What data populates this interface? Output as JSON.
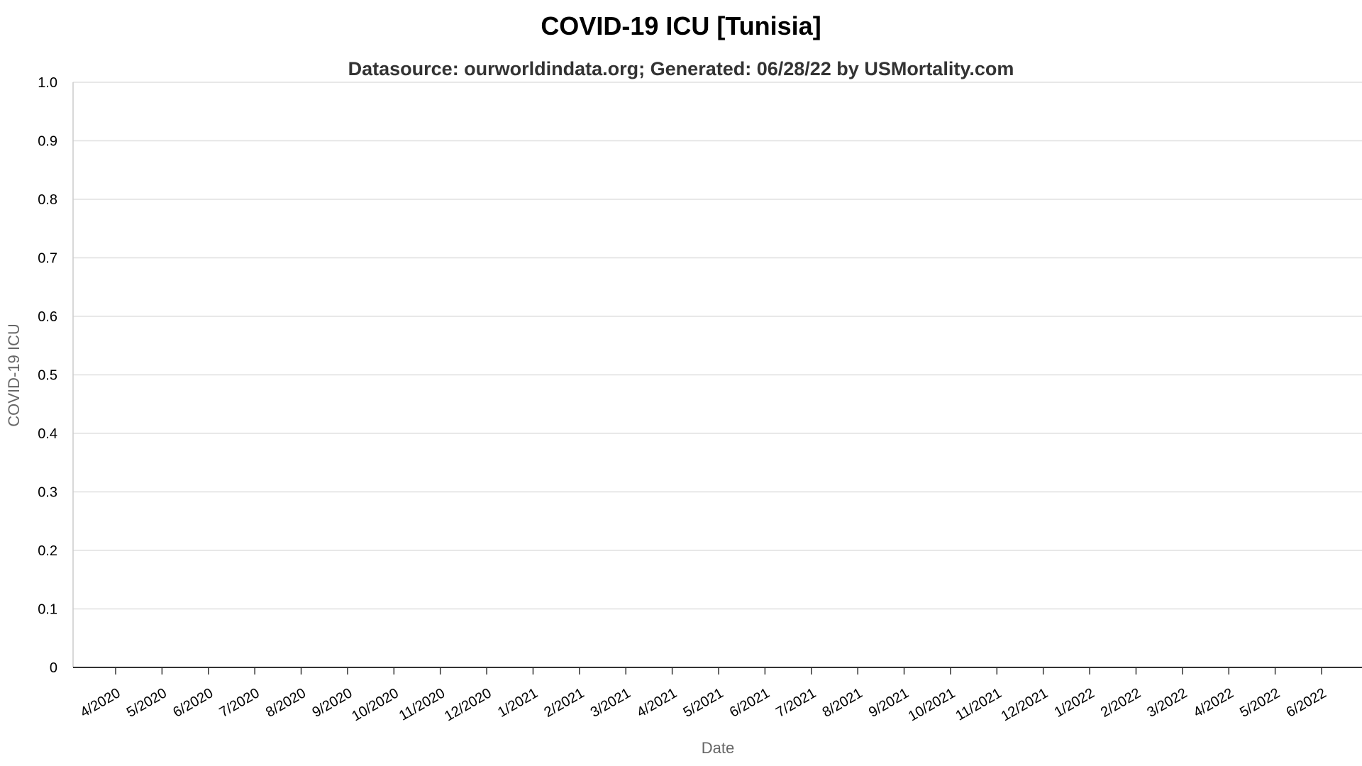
{
  "chart_data": {
    "type": "line",
    "title": "COVID-19 ICU [Tunisia]",
    "subtitle": "Datasource: ourworldindata.org; Generated: 06/28/22 by USMortality.com",
    "xlabel": "Date",
    "ylabel": "COVID-19 ICU",
    "ylim": [
      0,
      1
    ],
    "y_ticks": [
      "0",
      "0.1",
      "0.2",
      "0.3",
      "0.4",
      "0.5",
      "0.6",
      "0.7",
      "0.8",
      "0.9",
      "1.0"
    ],
    "x_ticks": [
      "4/2020",
      "5/2020",
      "6/2020",
      "7/2020",
      "8/2020",
      "9/2020",
      "10/2020",
      "11/2020",
      "12/2020",
      "1/2021",
      "2/2021",
      "3/2021",
      "4/2021",
      "5/2021",
      "6/2021",
      "7/2021",
      "8/2021",
      "9/2021",
      "10/2021",
      "11/2021",
      "12/2021",
      "1/2022",
      "2/2022",
      "3/2022",
      "4/2022",
      "5/2022",
      "6/2022"
    ],
    "grid": true,
    "series": []
  }
}
